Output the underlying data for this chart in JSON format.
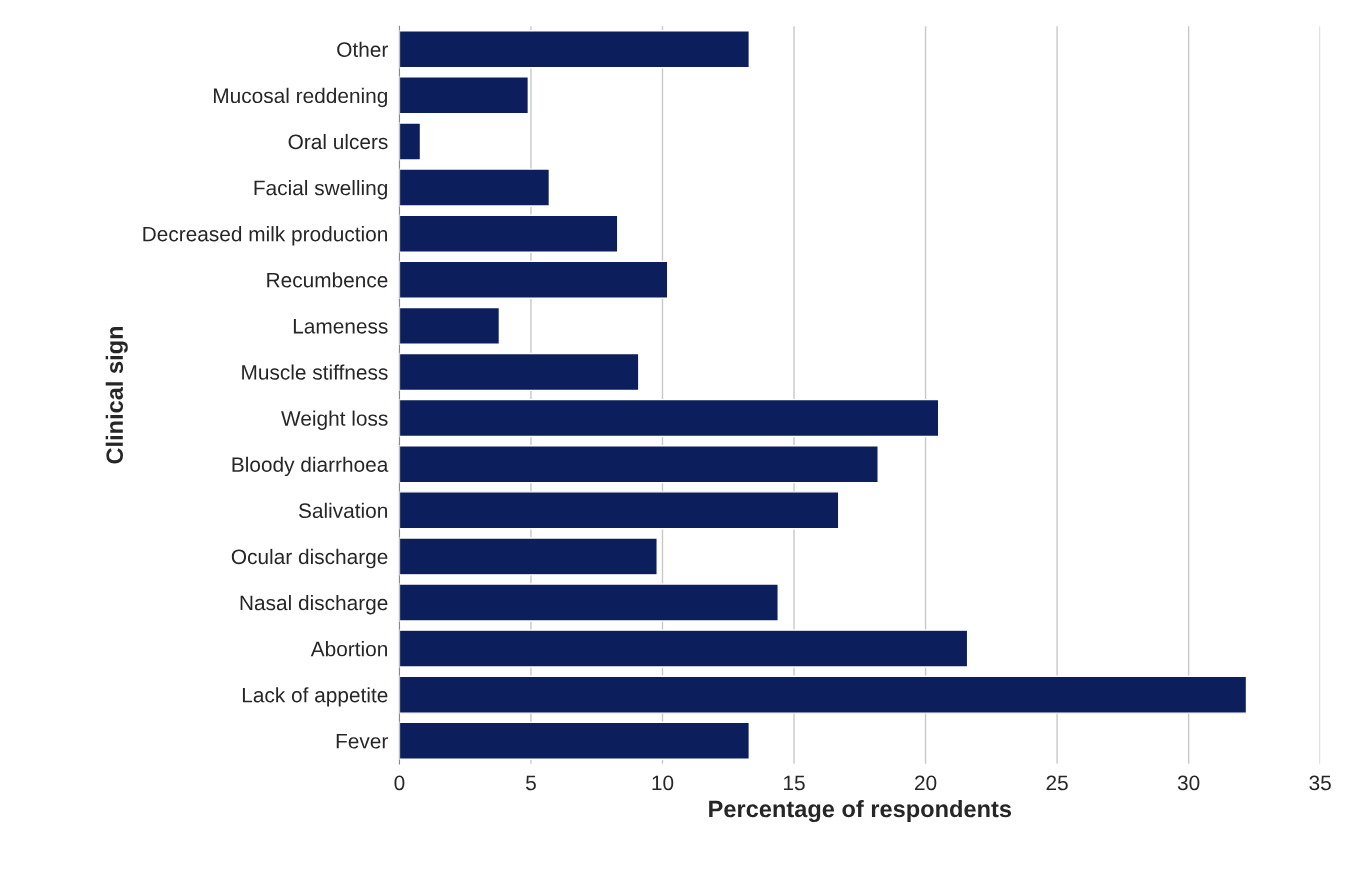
{
  "chart_data": {
    "type": "bar",
    "orientation": "horizontal",
    "xlabel": "Percentage of respondents",
    "ylabel": "Clinical sign",
    "categories": [
      "Other",
      "Mucosal reddening",
      "Oral ulcers",
      "Facial swelling",
      "Decreased milk production",
      "Recumbence",
      "Lameness",
      "Muscle stiffness",
      "Weight loss",
      "Bloody diarrhoea",
      "Salivation",
      "Ocular discharge",
      "Nasal discharge",
      "Abortion",
      "Lack of appetite",
      "Fever"
    ],
    "values": [
      13.3,
      4.9,
      0.8,
      5.7,
      8.3,
      10.2,
      3.8,
      9.1,
      20.5,
      18.2,
      16.7,
      9.8,
      14.4,
      21.6,
      32.2,
      13.3
    ],
    "color": "#0c1f5c",
    "xlim": [
      0,
      35
    ],
    "xticks": [
      0,
      5,
      10,
      15,
      20,
      25,
      30,
      35
    ],
    "grid": "x"
  }
}
